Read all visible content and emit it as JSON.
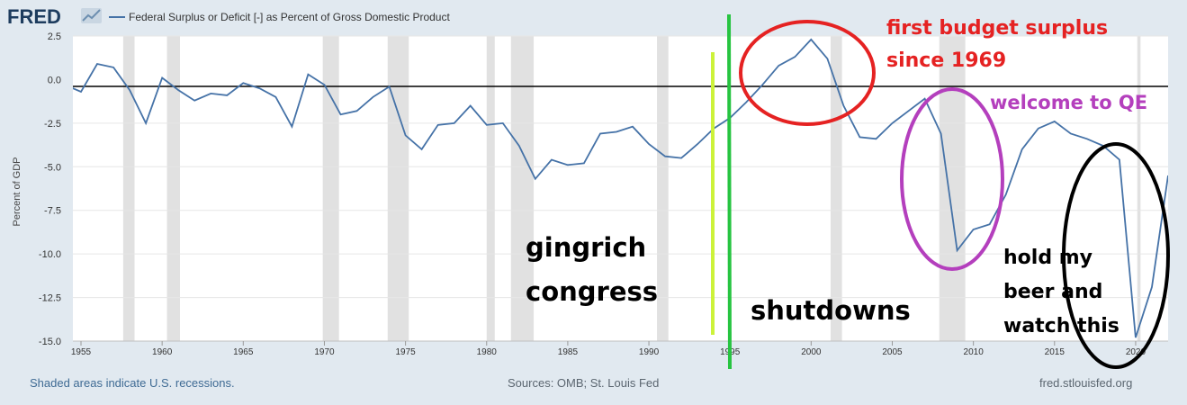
{
  "header": {
    "logo_text": "FRED",
    "legend_label": "Federal Surplus or Deficit [-] as Percent of Gross Domestic Product"
  },
  "footer": {
    "recession_note": "Shaded areas indicate U.S. recessions.",
    "sources": "Sources: OMB; St. Louis Fed",
    "site": "fred.stlouisfed.org"
  },
  "colors": {
    "series": "#4572a7",
    "recession": "#e1e1e1",
    "annotation_red": "#e52222",
    "annotation_purple": "#b43fbd",
    "annotation_black": "#000000",
    "line_lime": "#ccf23a",
    "line_green": "#27c441"
  },
  "chart_data": {
    "type": "line",
    "ylabel": "Percent of GDP",
    "xlim": [
      1954.5,
      2022
    ],
    "ylim": [
      -15,
      2.5
    ],
    "yticks": [
      2.5,
      0,
      -2.5,
      -5,
      -7.5,
      -10,
      -12.5,
      -15
    ],
    "ytick_labels": [
      "2.5",
      "0.0",
      "-2.5",
      "-5.0",
      "-7.5",
      "-10.0",
      "-12.5",
      "-15.0"
    ],
    "xticks": [
      1955,
      1960,
      1965,
      1970,
      1975,
      1980,
      1985,
      1990,
      1995,
      2000,
      2005,
      2010,
      2015,
      2020
    ],
    "xtick_labels": [
      "1955",
      "1960",
      "1965",
      "1970",
      "1975",
      "1980",
      "1985",
      "1990",
      "1995",
      "2000",
      "2005",
      "2010",
      "2015",
      "2020"
    ],
    "recessions": [
      [
        1957.6,
        1958.3
      ],
      [
        1960.3,
        1961.1
      ],
      [
        1969.9,
        1970.9
      ],
      [
        1973.9,
        1975.2
      ],
      [
        1980.0,
        1980.5
      ],
      [
        1981.5,
        1982.9
      ],
      [
        1990.5,
        1991.2
      ],
      [
        2001.2,
        2001.9
      ],
      [
        2007.9,
        2009.5
      ],
      [
        2020.1,
        2020.3
      ]
    ],
    "series": [
      {
        "name": "Federal Surplus or Deficit [-] as Percent of Gross Domestic Product",
        "x": [
          1954,
          1955,
          1956,
          1957,
          1958,
          1959,
          1960,
          1961,
          1962,
          1963,
          1964,
          1965,
          1966,
          1967,
          1968,
          1969,
          1970,
          1971,
          1972,
          1973,
          1974,
          1975,
          1976,
          1977,
          1978,
          1979,
          1980,
          1981,
          1982,
          1983,
          1984,
          1985,
          1986,
          1987,
          1988,
          1989,
          1990,
          1991,
          1992,
          1993,
          1994,
          1995,
          1996,
          1997,
          1998,
          1999,
          2000,
          2001,
          2002,
          2003,
          2004,
          2005,
          2006,
          2007,
          2008,
          2009,
          2010,
          2011,
          2012,
          2013,
          2014,
          2015,
          2016,
          2017,
          2018,
          2019,
          2020,
          2021,
          2022
        ],
        "values": [
          -0.3,
          -0.7,
          0.9,
          0.7,
          -0.6,
          -2.5,
          0.1,
          -0.6,
          -1.2,
          -0.8,
          -0.9,
          -0.2,
          -0.5,
          -1.0,
          -2.7,
          0.3,
          -0.3,
          -2.0,
          -1.8,
          -1.0,
          -0.4,
          -3.2,
          -4.0,
          -2.6,
          -2.5,
          -1.5,
          -2.6,
          -2.5,
          -3.8,
          -5.7,
          -4.6,
          -4.9,
          -4.8,
          -3.1,
          -3.0,
          -2.7,
          -3.7,
          -4.4,
          -4.5,
          -3.7,
          -2.8,
          -2.2,
          -1.3,
          -0.3,
          0.8,
          1.3,
          2.3,
          1.2,
          -1.5,
          -3.3,
          -3.4,
          -2.5,
          -1.8,
          -1.1,
          -3.1,
          -9.8,
          -8.6,
          -8.3,
          -6.6,
          -4.0,
          -2.8,
          -2.4,
          -3.1,
          -3.4,
          -3.8,
          -4.6,
          -14.8,
          -11.9,
          -5.5
        ]
      }
    ],
    "annotations": [
      {
        "text": "first budget surplus",
        "color": "#e52222"
      },
      {
        "text": "since 1969",
        "color": "#e52222"
      },
      {
        "text": "welcome to QE",
        "color": "#b43fbd"
      },
      {
        "text": "gingrich",
        "color": "#000000"
      },
      {
        "text": "congress",
        "color": "#000000"
      },
      {
        "text": "shutdowns",
        "color": "#000000"
      },
      {
        "text": "hold my",
        "color": "#000000"
      },
      {
        "text": "beer and",
        "color": "#000000"
      },
      {
        "text": "watch this",
        "color": "#000000"
      }
    ],
    "grid": true,
    "legend": "top-left"
  }
}
